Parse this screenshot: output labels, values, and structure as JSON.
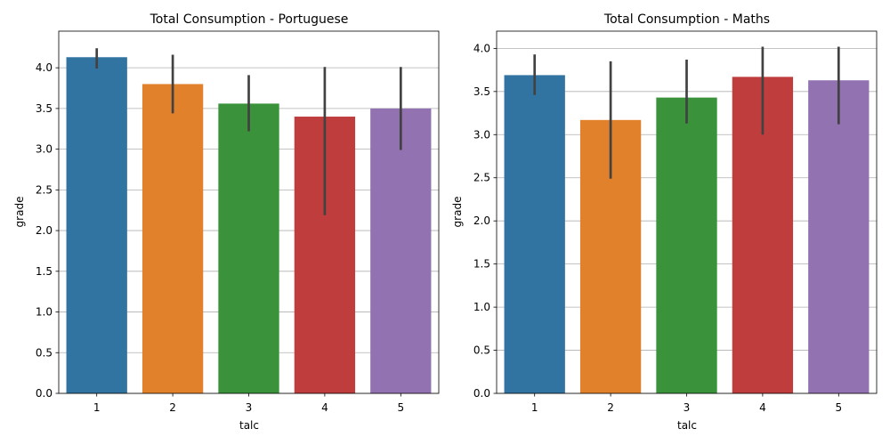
{
  "chart_data": [
    {
      "type": "bar",
      "title": "Total Consumption - Portuguese",
      "xlabel": "talc",
      "ylabel": "grade",
      "categories": [
        "1",
        "2",
        "3",
        "4",
        "5"
      ],
      "values": [
        4.13,
        3.8,
        3.56,
        3.4,
        3.5
      ],
      "error_low": [
        3.99,
        3.44,
        3.22,
        2.19,
        2.99
      ],
      "error_high": [
        4.24,
        4.16,
        3.91,
        4.01,
        4.01
      ],
      "ylim": [
        0,
        4.45
      ],
      "yticks": [
        0.0,
        0.5,
        1.0,
        1.5,
        2.0,
        2.5,
        3.0,
        3.5,
        4.0
      ],
      "ytick_labels": [
        "0.0",
        "0.5",
        "1.0",
        "1.5",
        "2.0",
        "2.5",
        "3.0",
        "3.5",
        "4.0"
      ],
      "grid": "y"
    },
    {
      "type": "bar",
      "title": "Total Consumption - Maths",
      "xlabel": "talc",
      "ylabel": "grade",
      "categories": [
        "1",
        "2",
        "3",
        "4",
        "5"
      ],
      "values": [
        3.69,
        3.17,
        3.43,
        3.67,
        3.63
      ],
      "error_low": [
        3.46,
        2.49,
        3.13,
        3.0,
        3.12
      ],
      "error_high": [
        3.93,
        3.85,
        3.87,
        4.02,
        4.02
      ],
      "ylim": [
        0,
        4.2
      ],
      "yticks": [
        0.0,
        0.5,
        1.0,
        1.5,
        2.0,
        2.5,
        3.0,
        3.5,
        4.0
      ],
      "ytick_labels": [
        "0.0",
        "0.5",
        "1.0",
        "1.5",
        "2.0",
        "2.5",
        "3.0",
        "3.5",
        "4.0"
      ],
      "grid": "y"
    }
  ],
  "colors": {
    "bars": [
      "#3274a1",
      "#e1812c",
      "#3a923a",
      "#c03d3e",
      "#9372b2"
    ],
    "errorbar": "#424242",
    "grid": "#b0b0b0",
    "axis": "#000000"
  }
}
